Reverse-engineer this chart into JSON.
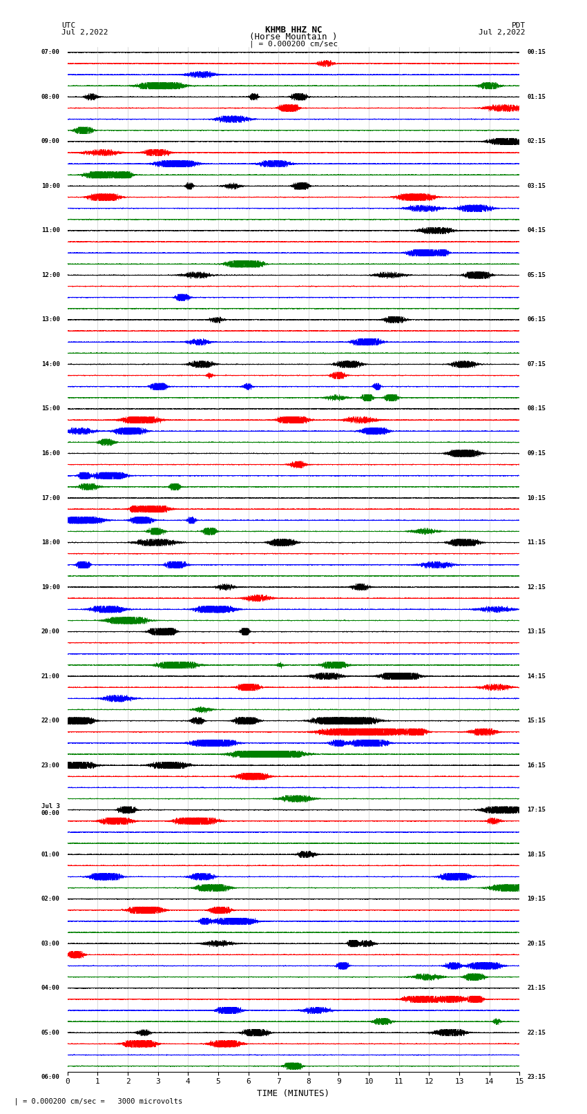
{
  "title_line1": "KHMB HHZ NC",
  "title_line2": "(Horse Mountain )",
  "title_line3": "| = 0.000200 cm/sec",
  "left_label_top": "UTC",
  "left_label_date": "Jul 2,2022",
  "right_label_top": "PDT",
  "right_label_date": "Jul 2,2022",
  "bottom_label": "TIME (MINUTES)",
  "bottom_note": "  | = 0.000200 cm/sec =   3000 microvolts",
  "xlabel_ticks": [
    0,
    1,
    2,
    3,
    4,
    5,
    6,
    7,
    8,
    9,
    10,
    11,
    12,
    13,
    14,
    15
  ],
  "left_times": [
    "07:00",
    "",
    "",
    "",
    "08:00",
    "",
    "",
    "",
    "09:00",
    "",
    "",
    "",
    "10:00",
    "",
    "",
    "",
    "11:00",
    "",
    "",
    "",
    "12:00",
    "",
    "",
    "",
    "13:00",
    "",
    "",
    "",
    "14:00",
    "",
    "",
    "",
    "15:00",
    "",
    "",
    "",
    "16:00",
    "",
    "",
    "",
    "17:00",
    "",
    "",
    "",
    "18:00",
    "",
    "",
    "",
    "19:00",
    "",
    "",
    "",
    "20:00",
    "",
    "",
    "",
    "21:00",
    "",
    "",
    "",
    "22:00",
    "",
    "",
    "",
    "23:00",
    "",
    "",
    "",
    "Jul 3\n00:00",
    "",
    "",
    "",
    "01:00",
    "",
    "",
    "",
    "02:00",
    "",
    "",
    "",
    "03:00",
    "",
    "",
    "",
    "04:00",
    "",
    "",
    "",
    "05:00",
    "",
    "",
    "",
    "06:00",
    "",
    "",
    ""
  ],
  "right_times": [
    "00:15",
    "",
    "",
    "",
    "01:15",
    "",
    "",
    "",
    "02:15",
    "",
    "",
    "",
    "03:15",
    "",
    "",
    "",
    "04:15",
    "",
    "",
    "",
    "05:15",
    "",
    "",
    "",
    "06:15",
    "",
    "",
    "",
    "07:15",
    "",
    "",
    "",
    "08:15",
    "",
    "",
    "",
    "09:15",
    "",
    "",
    "",
    "10:15",
    "",
    "",
    "",
    "11:15",
    "",
    "",
    "",
    "12:15",
    "",
    "",
    "",
    "13:15",
    "",
    "",
    "",
    "14:15",
    "",
    "",
    "",
    "15:15",
    "",
    "",
    "",
    "16:15",
    "",
    "",
    "",
    "17:15",
    "",
    "",
    "",
    "18:15",
    "",
    "",
    "",
    "19:15",
    "",
    "",
    "",
    "20:15",
    "",
    "",
    "",
    "21:15",
    "",
    "",
    "",
    "22:15",
    "",
    "",
    "",
    "23:15",
    "",
    "",
    ""
  ],
  "colors": [
    "black",
    "red",
    "blue",
    "green"
  ],
  "n_rows": 92,
  "n_cols": 15,
  "bg_color": "white",
  "trace_amplitude": 0.3,
  "base_noise_scale": 0.025,
  "hf_noise_scale": 0.018
}
